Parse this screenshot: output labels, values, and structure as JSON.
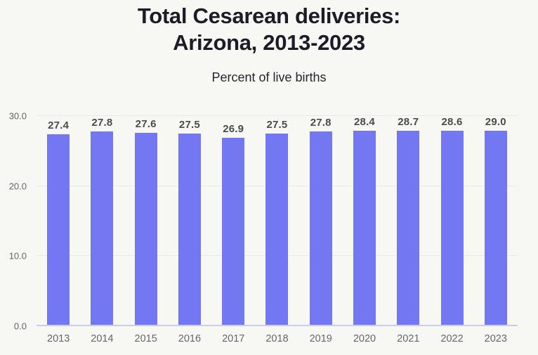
{
  "header": {
    "title_line1": "Total Cesarean deliveries:",
    "title_line2": "Arizona, 2013-2023",
    "subtitle": "Percent of live births"
  },
  "chart_data": {
    "type": "bar",
    "title": "Total Cesarean deliveries: Arizona, 2013-2023",
    "subtitle": "Percent of live births",
    "categories": [
      "2013",
      "2014",
      "2015",
      "2016",
      "2017",
      "2018",
      "2019",
      "2020",
      "2021",
      "2022",
      "2023"
    ],
    "values": [
      27.4,
      27.8,
      27.6,
      27.5,
      26.9,
      27.5,
      27.8,
      28.4,
      28.7,
      28.6,
      29.0
    ],
    "value_labels": [
      "27.4",
      "27.8",
      "27.6",
      "27.5",
      "26.9",
      "27.5",
      "27.8",
      "28.4",
      "28.7",
      "28.6",
      "29.0"
    ],
    "xlabel": "",
    "ylabel": "Percent of live births",
    "ylim": [
      0,
      30
    ],
    "yticks": [
      0,
      10,
      20,
      30
    ],
    "ytick_labels": [
      "0.0",
      "10.0",
      "20.0",
      "30.0"
    ],
    "grid": true,
    "legend": false,
    "colors": {
      "background": "#f7f7f4",
      "bar": "#7377f2",
      "gridline": "#e9e9e6",
      "baseline": "#c9cdf2",
      "value_label": "#4b4b4b",
      "axis_text": "#66666c",
      "title": "#1d1b27",
      "subtitle": "#262632"
    }
  }
}
